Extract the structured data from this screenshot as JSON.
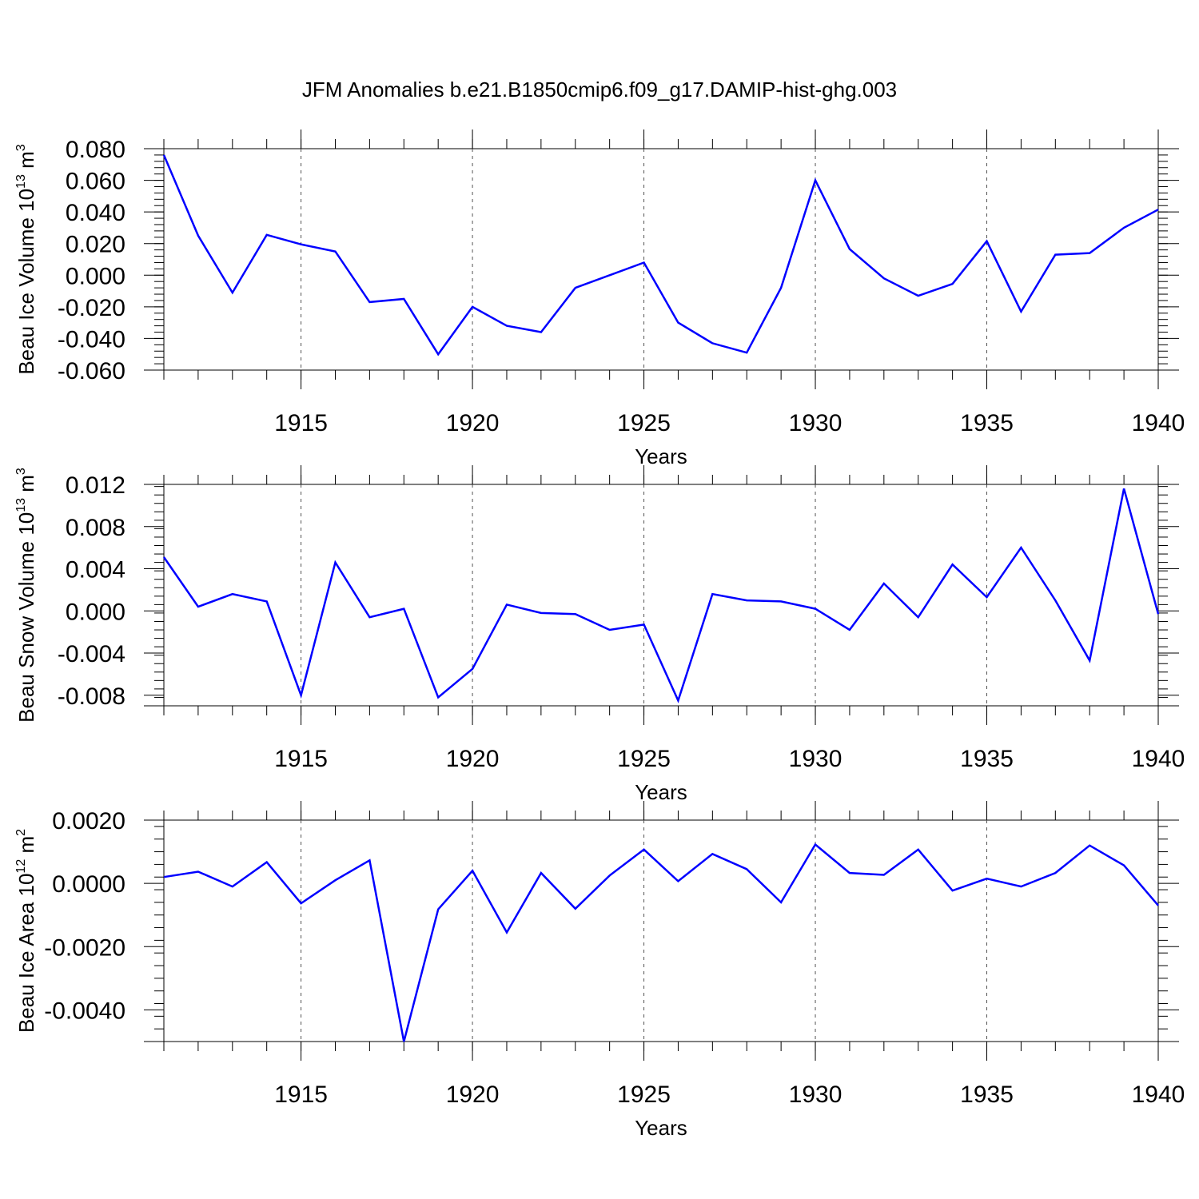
{
  "figure": {
    "title": "JFM Anomalies b.e21.B1850cmip6.f09_g17.DAMIP-hist-ghg.003"
  },
  "chart_data": [
    {
      "type": "line",
      "xlabel": "Years",
      "ylabel": "Beau Ice Volume 10",
      "ylabel_exp": "13",
      "ylabel_unit": " m",
      "ylabel_unit_exp": "3",
      "xlim": [
        1911,
        1940
      ],
      "ylim": [
        -0.06,
        0.08
      ],
      "xticks": [
        1915,
        1920,
        1925,
        1930,
        1935,
        1940
      ],
      "xtick_labels": [
        "1915",
        "1920",
        "1925",
        "1930",
        "1935",
        "1940"
      ],
      "yticks": [
        -0.06,
        -0.04,
        -0.02,
        0.0,
        0.02,
        0.04,
        0.06,
        0.08
      ],
      "ytick_labels": [
        "-0.060",
        "-0.040",
        "-0.020",
        "0.000",
        "0.020",
        "0.040",
        "0.060",
        "0.080"
      ],
      "grid": "vertical dashed at major x ticks",
      "series": [
        {
          "color": "#0000ff",
          "x": [
            1911,
            1912,
            1913,
            1914,
            1915,
            1916,
            1917,
            1918,
            1919,
            1920,
            1921,
            1922,
            1923,
            1924,
            1925,
            1926,
            1927,
            1928,
            1929,
            1930,
            1931,
            1932,
            1933,
            1934,
            1935,
            1936,
            1937,
            1938,
            1939,
            1940
          ],
          "values": [
            0.076,
            0.025,
            -0.011,
            0.0255,
            0.0195,
            0.015,
            -0.017,
            -0.015,
            -0.05,
            -0.02,
            -0.032,
            -0.036,
            -0.008,
            0.0,
            0.008,
            -0.03,
            -0.043,
            -0.049,
            -0.008,
            0.06,
            0.0165,
            -0.002,
            -0.013,
            -0.0055,
            0.0215,
            -0.023,
            0.013,
            0.014,
            0.03,
            0.0415
          ]
        }
      ]
    },
    {
      "type": "line",
      "xlabel": "Years",
      "ylabel": "Beau Snow Volume 10",
      "ylabel_exp": "13",
      "ylabel_unit": " m",
      "ylabel_unit_exp": "3",
      "xlim": [
        1911,
        1940
      ],
      "ylim": [
        -0.009,
        0.012
      ],
      "xticks": [
        1915,
        1920,
        1925,
        1930,
        1935,
        1940
      ],
      "xtick_labels": [
        "1915",
        "1920",
        "1925",
        "1930",
        "1935",
        "1940"
      ],
      "yticks": [
        -0.008,
        -0.004,
        0.0,
        0.004,
        0.008,
        0.012
      ],
      "ytick_labels": [
        "-0.008",
        "-0.004",
        "0.000",
        "0.004",
        "0.008",
        "0.012"
      ],
      "grid": "vertical dashed at major x ticks",
      "series": [
        {
          "color": "#0000ff",
          "x": [
            1911,
            1912,
            1913,
            1914,
            1915,
            1916,
            1917,
            1918,
            1919,
            1920,
            1921,
            1922,
            1923,
            1924,
            1925,
            1926,
            1927,
            1928,
            1929,
            1930,
            1931,
            1932,
            1933,
            1934,
            1935,
            1936,
            1937,
            1938,
            1939,
            1940
          ],
          "values": [
            0.0051,
            0.0004,
            0.0016,
            0.0009,
            -0.008,
            0.0046,
            -0.0006,
            0.0002,
            -0.0082,
            -0.0055,
            0.0006,
            -0.0002,
            -0.0003,
            -0.0018,
            -0.0013,
            -0.0085,
            0.0016,
            0.001,
            0.0009,
            0.0002,
            -0.0018,
            0.0026,
            -0.0006,
            0.0044,
            0.0013,
            0.006,
            0.001,
            -0.0047,
            0.0116,
            -0.0003
          ]
        }
      ]
    },
    {
      "type": "line",
      "xlabel": "Years",
      "ylabel": "Beau Ice Area 10",
      "ylabel_exp": "12",
      "ylabel_unit": " m",
      "ylabel_unit_exp": "2",
      "xlim": [
        1911,
        1940
      ],
      "ylim": [
        -0.005,
        0.002
      ],
      "xticks": [
        1915,
        1920,
        1925,
        1930,
        1935,
        1940
      ],
      "xtick_labels": [
        "1915",
        "1920",
        "1925",
        "1930",
        "1935",
        "1940"
      ],
      "yticks": [
        -0.004,
        -0.002,
        0.0,
        0.002
      ],
      "ytick_labels": [
        "-0.0040",
        "-0.0020",
        "0.0000",
        "0.0020"
      ],
      "grid": "vertical dashed at major x ticks",
      "series": [
        {
          "color": "#0000ff",
          "x": [
            1911,
            1912,
            1913,
            1914,
            1915,
            1916,
            1917,
            1918,
            1919,
            1920,
            1921,
            1922,
            1923,
            1924,
            1925,
            1926,
            1927,
            1928,
            1929,
            1930,
            1931,
            1932,
            1933,
            1934,
            1935,
            1936,
            1937,
            1938,
            1939,
            1940
          ],
          "values": [
            0.0002,
            0.00037,
            -0.0001,
            0.00067,
            -0.00063,
            0.0001,
            0.00073,
            -0.005,
            -0.00082,
            0.0004,
            -0.00155,
            0.00033,
            -0.0008,
            0.00025,
            0.00107,
            7e-05,
            0.00093,
            0.00045,
            -0.0006,
            0.00123,
            0.00033,
            0.00027,
            0.00107,
            -0.00023,
            0.00015,
            -0.0001,
            0.00033,
            0.0012,
            0.00057,
            -0.0007
          ]
        }
      ]
    }
  ]
}
